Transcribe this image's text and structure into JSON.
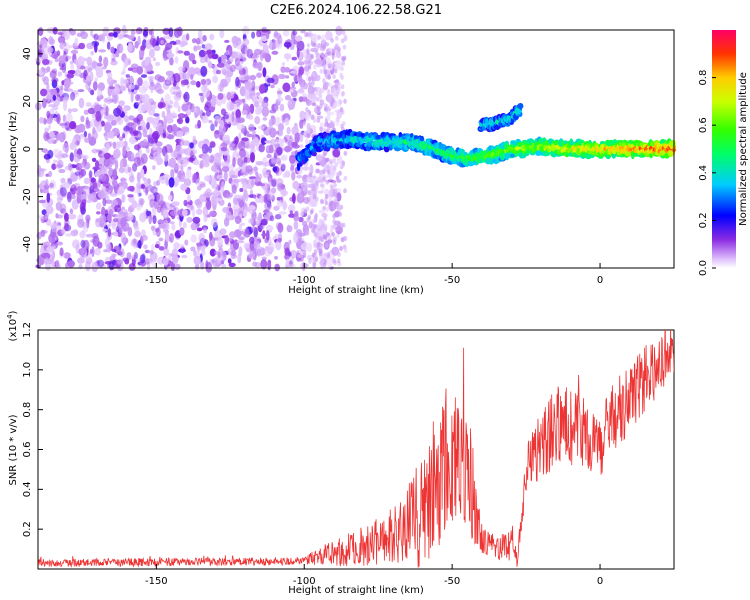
{
  "title": "C2E6.2024.106.22.58.G21",
  "chart_data": [
    {
      "type": "heatmap",
      "name": "spectrogram",
      "xlabel": "Height of straight line (km)",
      "ylabel": "Frequency (Hz)",
      "xlim": [
        -190,
        25
      ],
      "ylim": [
        -50,
        50
      ],
      "xticks": [
        -150,
        -100,
        -50,
        0
      ],
      "xtick_labels": [
        "-150",
        "-100",
        "-50",
        "0"
      ],
      "yticks": [
        -40,
        -20,
        0,
        20,
        40
      ],
      "ytick_labels": [
        "-40",
        "-20",
        "0",
        "20",
        "40"
      ],
      "colorbar": {
        "label": "Normalized spectral amplitude",
        "range": [
          0,
          1
        ],
        "ticks": [
          0.0,
          0.2,
          0.4,
          0.6,
          0.8
        ],
        "tick_labels": [
          "0.0",
          "0.2",
          "0.4",
          "0.6",
          "0.8"
        ]
      },
      "traces": [
        {
          "name": "noise-region",
          "x_range": [
            -190,
            -88
          ],
          "y_range": [
            -50,
            50
          ],
          "level": 0.15
        },
        {
          "name": "main-track",
          "points": [
            [
              -102,
              -5
            ],
            [
              -95,
              3
            ],
            [
              -85,
              4
            ],
            [
              -75,
              3
            ],
            [
              -65,
              3
            ],
            [
              -58,
              1
            ],
            [
              -52,
              -2
            ],
            [
              -45,
              -4
            ],
            [
              -38,
              -3
            ],
            [
              -30,
              0
            ],
            [
              -20,
              1
            ],
            [
              -10,
              0
            ],
            [
              0,
              0
            ],
            [
              10,
              0
            ],
            [
              25,
              0
            ]
          ],
          "level_start": 0.25,
          "level_end": 0.9
        },
        {
          "name": "upper-track",
          "points": [
            [
              -40,
              10
            ],
            [
              -35,
              11
            ],
            [
              -30,
              13
            ],
            [
              -27,
              17
            ]
          ],
          "level": 0.35
        }
      ]
    },
    {
      "type": "line",
      "name": "snr",
      "xlabel": "Height of straight line (km)",
      "ylabel": "SNR (10 * v/v)",
      "multiplier": "(x10",
      "multiplier_exp": "4",
      "multiplier_end": ")",
      "xlim": [
        -190,
        25
      ],
      "ylim": [
        0,
        1.2
      ],
      "xticks": [
        -150,
        -100,
        -50,
        0
      ],
      "xtick_labels": [
        "-150",
        "-100",
        "-50",
        "0"
      ],
      "yticks": [
        0.2,
        0.4,
        0.6,
        0.8,
        1.0,
        1.2
      ],
      "ytick_labels": [
        "0.2",
        "0.4",
        "0.6",
        "0.8",
        "1.0",
        "1.2"
      ],
      "series": [
        {
          "name": "SNR",
          "color": "#ee3333",
          "envelope_x": [
            -190,
            -100,
            -95,
            -85,
            -75,
            -65,
            -60,
            -55,
            -50,
            -45,
            -40,
            -35,
            -30,
            -28,
            -25,
            -20,
            -15,
            -10,
            -5,
            0,
            5,
            10,
            15,
            20,
            25
          ],
          "envelope_y": [
            0.03,
            0.04,
            0.07,
            0.09,
            0.14,
            0.22,
            0.3,
            0.42,
            0.55,
            0.48,
            0.16,
            0.1,
            0.12,
            0.05,
            0.5,
            0.62,
            0.72,
            0.72,
            0.68,
            0.62,
            0.78,
            0.85,
            0.95,
            1.02,
            1.08
          ],
          "noise_amplitude": [
            0.02,
            0.02,
            0.05,
            0.08,
            0.12,
            0.2,
            0.3,
            0.35,
            0.35,
            0.3,
            0.08,
            0.06,
            0.08,
            0.04,
            0.12,
            0.18,
            0.2,
            0.2,
            0.18,
            0.16,
            0.18,
            0.2,
            0.18,
            0.15,
            0.1
          ]
        }
      ]
    }
  ]
}
